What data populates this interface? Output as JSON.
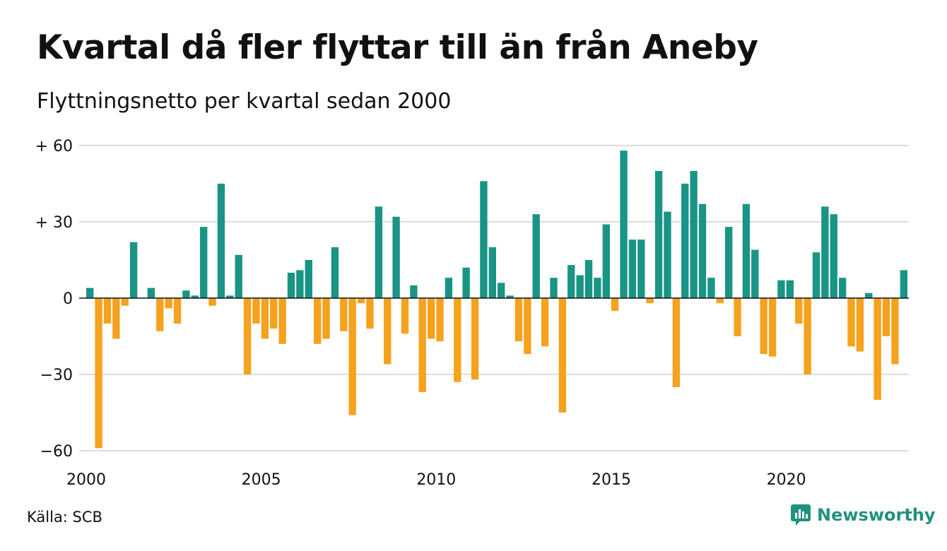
{
  "header": {
    "title": "Kvartal då fler flyttar till än från Aneby",
    "subtitle": "Flyttningsnetto per kvartal sedan 2000"
  },
  "footer": {
    "source": "Källa: SCB",
    "brand": "Newsworthy"
  },
  "colors": {
    "positive": "#1a9585",
    "negative": "#f5a21e",
    "gridline": "#dddddd",
    "zeroline": "#111111",
    "brand": "#23917f"
  },
  "chart_data": {
    "type": "bar",
    "title": "Kvartal då fler flyttar till än från Aneby",
    "subtitle": "Flyttningsnetto per kvartal sedan 2000",
    "start_year": 2000,
    "periods_per_year": 4,
    "x_ticks": [
      "2000",
      "2005",
      "2010",
      "2015",
      "2020"
    ],
    "y_ticks": [
      {
        "value": 60,
        "label": "+ 60"
      },
      {
        "value": 30,
        "label": "+ 30"
      },
      {
        "value": 0,
        "label": "0"
      },
      {
        "value": -30,
        "label": "−30"
      },
      {
        "value": -60,
        "label": "−60"
      }
    ],
    "ylim": [
      -60,
      60
    ],
    "grid": true,
    "values": [
      4,
      -59,
      -10,
      -16,
      -3,
      22,
      0,
      4,
      -13,
      -4,
      -10,
      3,
      1,
      28,
      -3,
      45,
      1,
      17,
      -30,
      -10,
      -16,
      -12,
      -18,
      10,
      11,
      15,
      -18,
      -16,
      20,
      -13,
      -46,
      -2,
      -12,
      36,
      -26,
      32,
      -14,
      5,
      -37,
      -16,
      -17,
      8,
      -33,
      12,
      -32,
      46,
      20,
      6,
      1,
      -17,
      -22,
      33,
      -19,
      8,
      -45,
      13,
      9,
      15,
      8,
      29,
      -5,
      58,
      23,
      23,
      -2,
      50,
      34,
      -35,
      45,
      50,
      37,
      8,
      -2,
      28,
      -15,
      37,
      19,
      -22,
      -23,
      7,
      7,
      -10,
      -30,
      18,
      36,
      33,
      8,
      -19,
      -21,
      2,
      -40,
      -15,
      -26,
      11
    ]
  }
}
